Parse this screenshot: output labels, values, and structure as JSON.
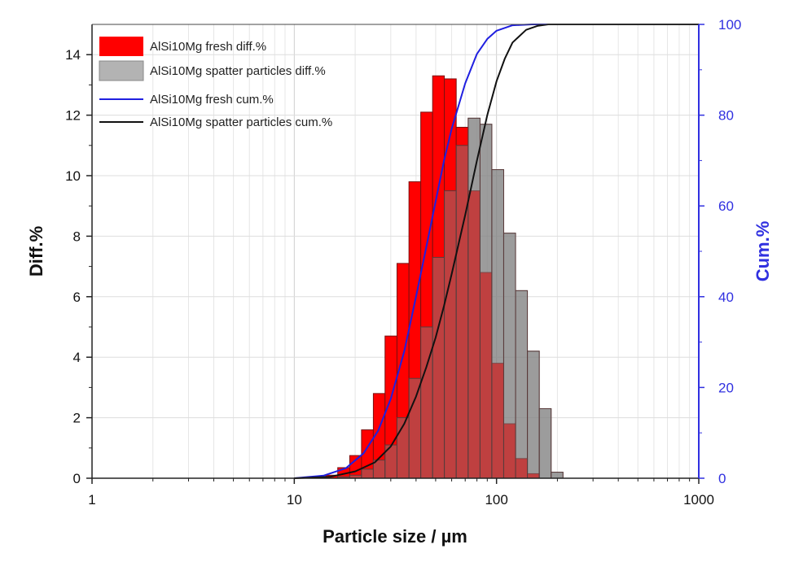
{
  "chart_data": {
    "type": "bar",
    "xlabel": "Particle size / µm",
    "ylabel": "Diff.%",
    "y2label": "Cum.%",
    "xscale": "log",
    "xlim": [
      1,
      1000
    ],
    "ylim": [
      0,
      15
    ],
    "y2lim": [
      0,
      100
    ],
    "xticks": [
      1,
      10,
      100,
      1000
    ],
    "xtick_labels": [
      "1",
      "10",
      "100",
      "1000"
    ],
    "yticks": [
      0,
      2,
      4,
      6,
      8,
      10,
      12,
      14
    ],
    "y2ticks": [
      0,
      20,
      40,
      60,
      80,
      100
    ],
    "grid": true,
    "legend_position": "top-left",
    "colors": {
      "fresh_bar": "#ff0000",
      "spatter_bar": "#808080",
      "fresh_cum": "#1f1fe0",
      "spatter_cum": "#111111",
      "right_axis": "#3030e0"
    },
    "series": [
      {
        "name": "AlSi10Mg fresh diff.%",
        "kind": "bar",
        "axis": "left",
        "bin_edges": [
          14.3,
          16.4,
          18.8,
          21.5,
          24.6,
          28.1,
          32.2,
          36.9,
          42.2,
          48.3,
          55.2,
          63.2,
          72.4,
          82.9,
          94.8,
          108.5,
          124.2,
          142.1,
          162.7,
          186.2,
          213.1
        ],
        "values": [
          0.1,
          0.35,
          0.75,
          1.6,
          2.8,
          4.7,
          7.1,
          9.8,
          12.1,
          13.3,
          13.2,
          11.6,
          9.5,
          6.8,
          3.8,
          1.8,
          0.65,
          0.15,
          0.0,
          0.0
        ]
      },
      {
        "name": "AlSi10Mg spatter particles diff.%",
        "kind": "bar",
        "axis": "left",
        "bin_edges": [
          14.3,
          16.4,
          18.8,
          21.5,
          24.6,
          28.1,
          32.2,
          36.9,
          42.2,
          48.3,
          55.2,
          63.2,
          72.4,
          82.9,
          94.8,
          108.5,
          124.2,
          142.1,
          162.7,
          186.2,
          213.1
        ],
        "values": [
          0.0,
          0.05,
          0.1,
          0.3,
          0.6,
          1.1,
          2.0,
          3.3,
          5.0,
          7.3,
          9.5,
          11.0,
          11.9,
          11.7,
          10.2,
          8.1,
          6.2,
          4.2,
          2.3,
          0.2
        ]
      },
      {
        "name": "AlSi10Mg fresh cum.%",
        "kind": "line",
        "axis": "right",
        "x": [
          10,
          14,
          18,
          22,
          26,
          30,
          35,
          40,
          45,
          50,
          55,
          60,
          70,
          80,
          90,
          100,
          120,
          150,
          200,
          1000
        ],
        "y": [
          0,
          0.6,
          2.2,
          5.5,
          10.5,
          17.5,
          28,
          40,
          51,
          61,
          70,
          77,
          87,
          93.5,
          96.8,
          98.6,
          99.8,
          100,
          100,
          100
        ]
      },
      {
        "name": "AlSi10Mg spatter particles cum.%",
        "kind": "line",
        "axis": "right",
        "x": [
          10,
          15,
          20,
          25,
          30,
          35,
          40,
          45,
          50,
          55,
          60,
          70,
          80,
          90,
          100,
          110,
          120,
          140,
          160,
          180,
          200,
          1000
        ],
        "y": [
          0,
          0.3,
          1.5,
          3.5,
          7,
          12,
          18,
          24.5,
          31,
          38,
          45,
          58,
          70,
          80,
          87.5,
          92.5,
          96,
          98.8,
          99.7,
          100,
          100,
          100
        ]
      }
    ]
  }
}
